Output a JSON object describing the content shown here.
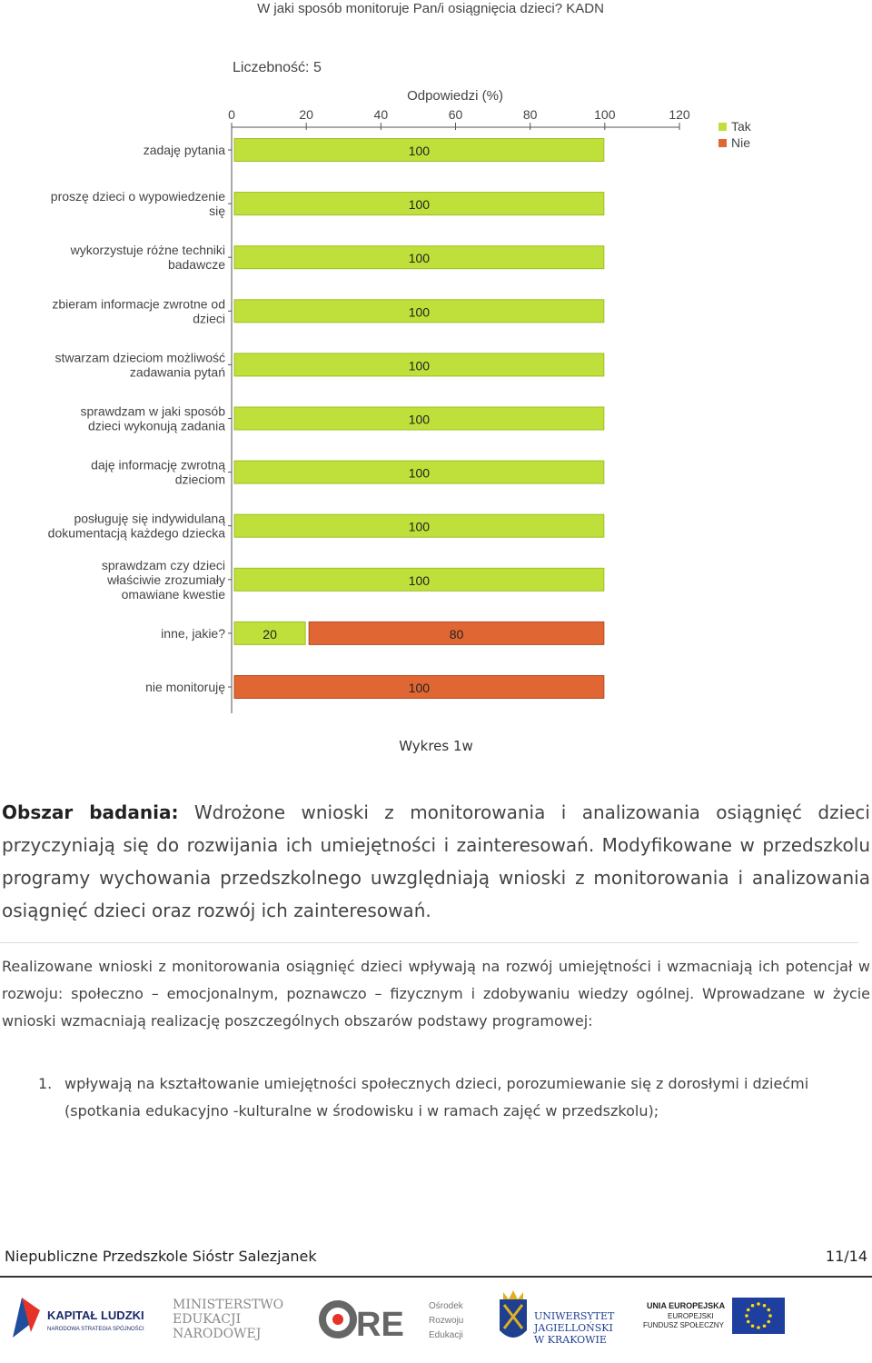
{
  "chart_data": {
    "type": "bar",
    "title": "W jaki sposób monitoruje Pan/i osiągnięcia dzieci? KADN",
    "subtitle": "Liczebność: 5",
    "xlabel": "Odpowiedzi (%)",
    "xlim": [
      0,
      120
    ],
    "ticks": [
      "0",
      "20",
      "40",
      "60",
      "80",
      "100",
      "120"
    ],
    "legend_position": "top-right",
    "categories": [
      "zadaję pytania",
      "proszę dzieci o wypowiedzenie się",
      "wykorzystuje różne techniki badawcze",
      "zbieram informacje zwrotne od dzieci",
      "stwarzam dzieciom możliwość zadawania pytań",
      "sprawdzam w jaki sposób dzieci wykonują zadania",
      "daję informację zwrotną dzieciom",
      "posługuję się indywidulaną dokumentacją każdego dziecka",
      "sprawdzam czy dzieci właściwie zrozumiały omawiane kwestie",
      "inne, jakie?",
      "nie monitoruję"
    ],
    "category_lines": [
      [
        "zadaję pytania"
      ],
      [
        "proszę dzieci o wypowiedzenie",
        "się"
      ],
      [
        "wykorzystuje różne techniki",
        "badawcze"
      ],
      [
        "zbieram informacje zwrotne od",
        "dzieci"
      ],
      [
        "stwarzam dzieciom możliwość",
        "zadawania pytań"
      ],
      [
        "sprawdzam w jaki sposób",
        "dzieci wykonują zadania"
      ],
      [
        "daję informację zwrotną",
        "dzieciom"
      ],
      [
        "posługuję się indywidulaną",
        "dokumentacją każdego dziecka"
      ],
      [
        "sprawdzam czy dzieci",
        "właściwie zrozumiały",
        "omawiane kwestie"
      ],
      [
        "inne, jakie?"
      ],
      [
        "nie monitoruję"
      ]
    ],
    "series": [
      {
        "name": "Tak",
        "color": "#bfe03a",
        "values": [
          100,
          100,
          100,
          100,
          100,
          100,
          100,
          100,
          100,
          20,
          0
        ]
      },
      {
        "name": "Nie",
        "color": "#e06633",
        "values": [
          0,
          0,
          0,
          0,
          0,
          0,
          0,
          0,
          0,
          80,
          100
        ]
      }
    ]
  },
  "caption": "Wykres 1w",
  "section": {
    "label": "Obszar badania:",
    "text": "Wdrożone wnioski z monitorowania i analizowania osiągnięć dzieci przyczyniają się do rozwijania ich umiejętności i zainteresowań. Modyfikowane w przedszkolu programy wychowania przedszkolnego uwzględniają wnioski z monitorowania i analizowania osiągnięć dzieci oraz rozwój ich zainteresowań."
  },
  "paragraph": "Realizowane wnioski z monitorowania osiągnięć dzieci wpływają na rozwój umiejętności i wzmacniają ich potencjał w rozwoju: społeczno – emocjonalnym, poznawczo – fizycznym i zdobywaniu wiedzy ogólnej. Wprowadzane w życie wnioski wzmacniają realizację poszczególnych obszarów podstawy programowej:",
  "list": [
    {
      "num": "1.",
      "text": "wpływają na kształtowanie umiejętności społecznych dzieci, porozumiewanie się z dorosłymi i dziećmi (spotkania edukacyjno -kulturalne w środowisku i w ramach zajęć w przedszkolu);"
    }
  ],
  "footer": {
    "school": "Niepubliczne Przedszkole Sióstr Salezjanek",
    "page": "11/14"
  },
  "logos": {
    "kapital": {
      "line1": "KAPITAŁ LUDZKI",
      "line2": "NARODOWA STRATEGIA SPÓJNOŚCI"
    },
    "men": {
      "line1": "MINISTERSTWO",
      "line2": "EDUKACJI",
      "line3": "NARODOWEJ"
    },
    "ore": {
      "mark": "ORE",
      "line1": "Ośrodek",
      "line2": "Rozwoju",
      "line3": "Edukacji"
    },
    "uj": {
      "line1": "UNIWERSYTET",
      "line2": "JAGIELLOŃSKI",
      "line3": "W KRAKOWIE"
    },
    "ue": {
      "line1": "UNIA EUROPEJSKA",
      "line2": "EUROPEJSKI",
      "line3": "FUNDUSZ SPOŁECZNY"
    }
  }
}
